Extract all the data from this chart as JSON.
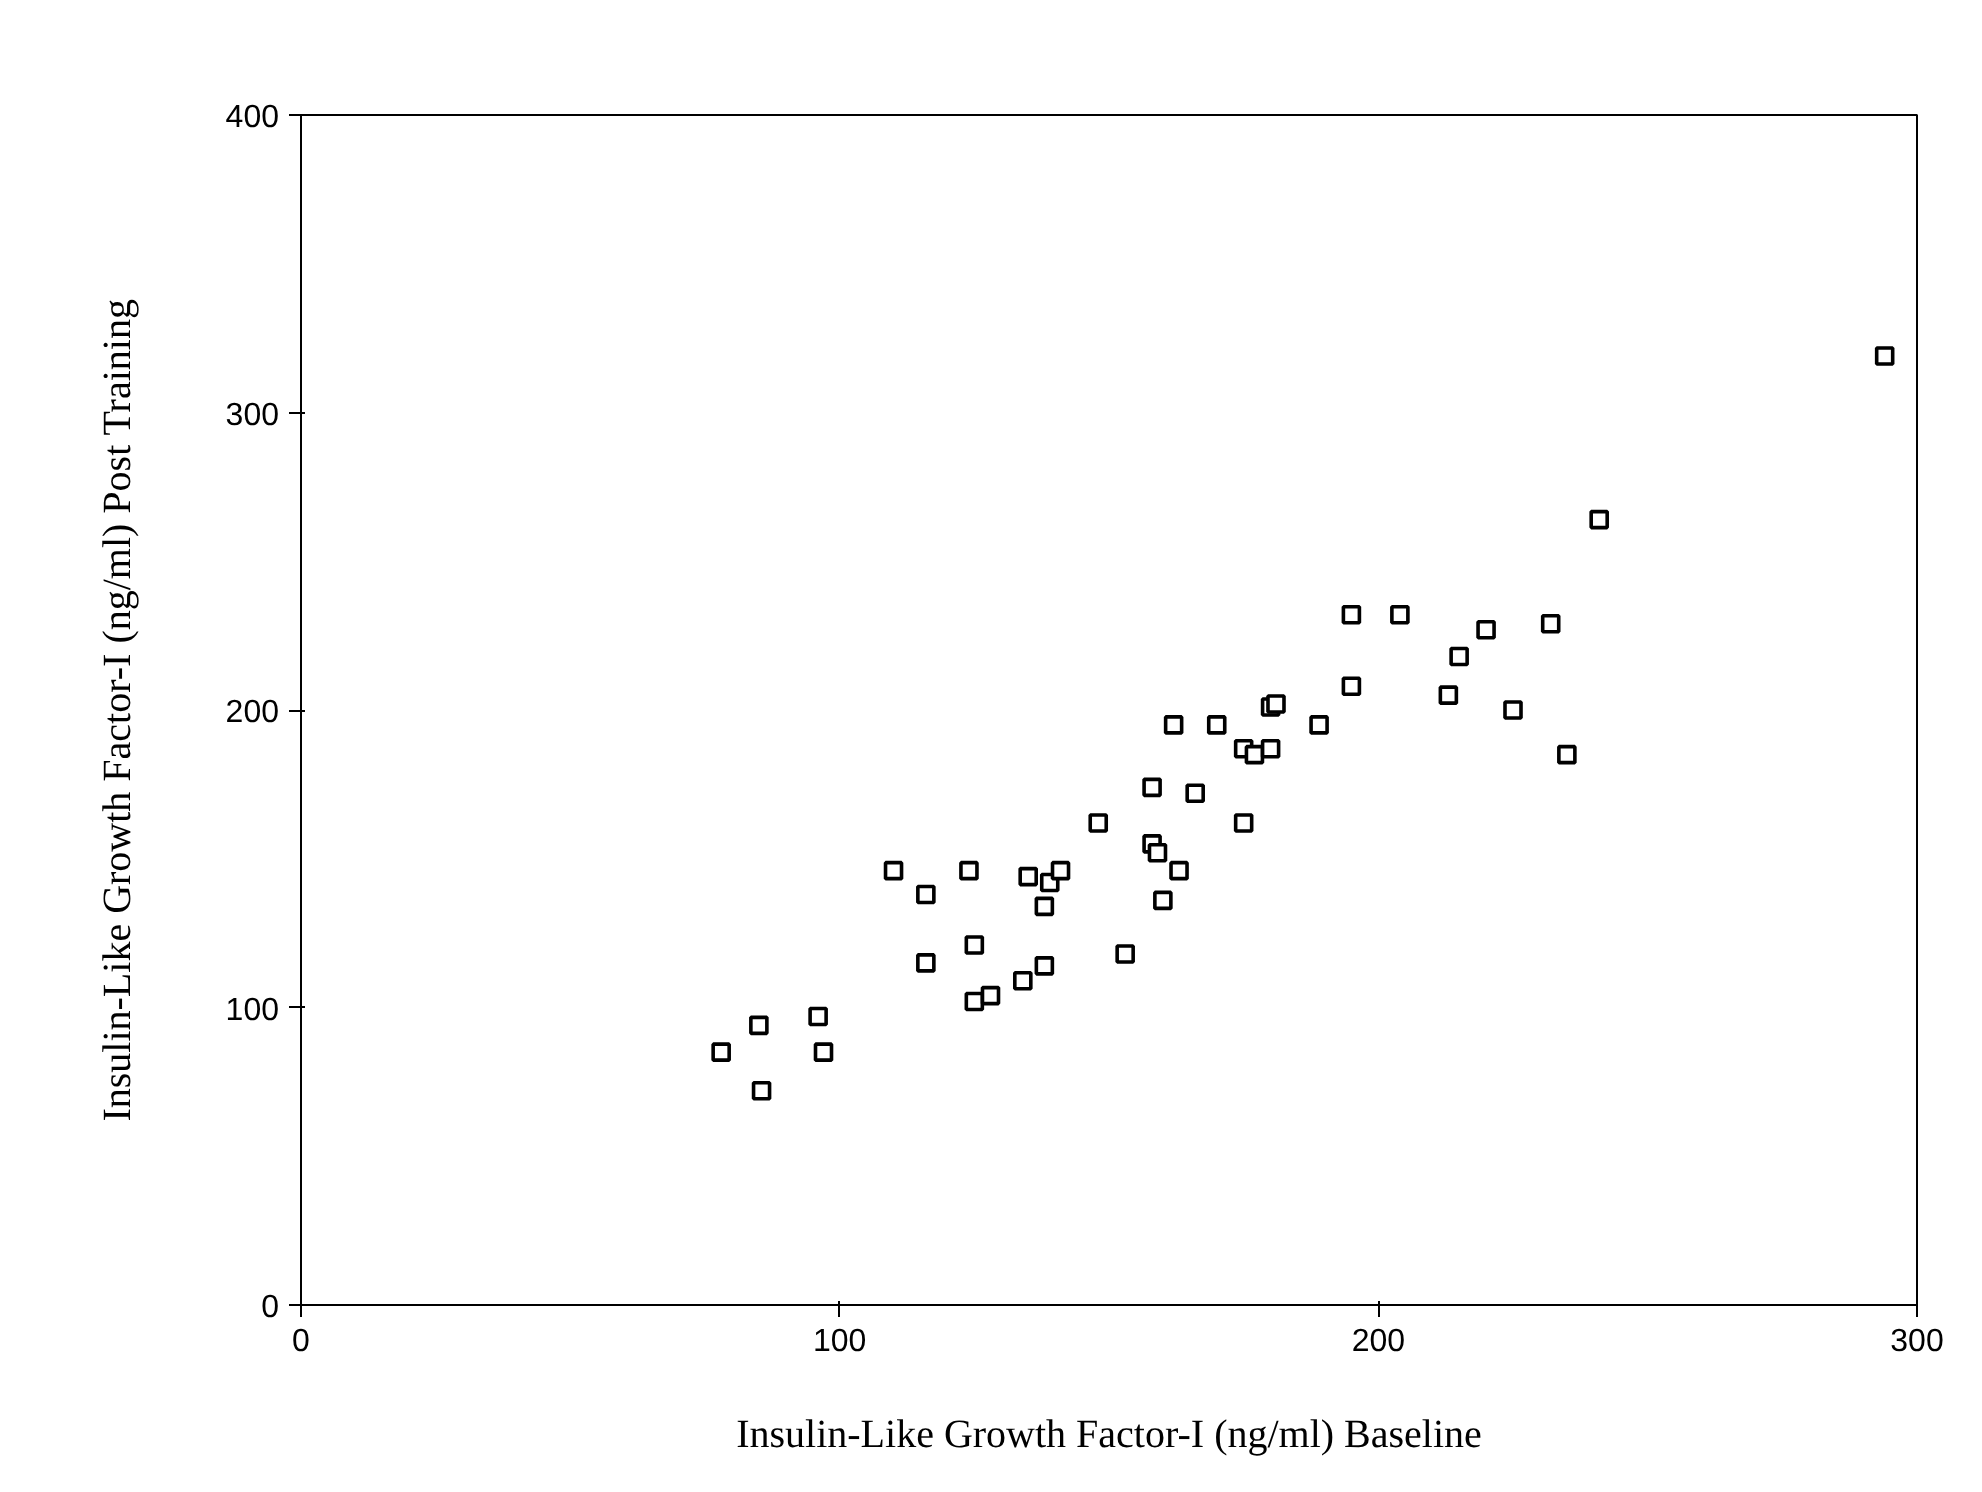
{
  "chart_data": {
    "type": "scatter",
    "xlabel": "Insulin-Like Growth Factor-I (ng/ml) Baseline",
    "ylabel": "Insulin-Like Growth Factor-I (ng/ml) Post Training",
    "xlim": [
      0,
      300
    ],
    "ylim": [
      0,
      400
    ],
    "xticks": [
      0,
      100,
      200,
      300
    ],
    "yticks": [
      0,
      100,
      200,
      300,
      400
    ],
    "marker": "square",
    "grid": false,
    "series": [
      {
        "color": "#000000",
        "x": [
          78,
          85,
          85.5,
          96,
          97,
          110,
          116,
          116,
          124,
          125,
          125,
          128,
          134,
          135,
          138,
          139,
          138,
          141,
          148,
          153,
          158,
          158,
          159,
          160,
          162,
          163,
          166,
          170,
          175,
          175,
          177,
          180,
          181,
          180,
          189,
          195,
          195,
          204,
          213,
          215,
          220,
          225,
          232,
          235,
          241,
          294
        ],
        "values": [
          85,
          94,
          72,
          97,
          85,
          146,
          138,
          115,
          146,
          102,
          121,
          104,
          109,
          144,
          134,
          142,
          114,
          146,
          162,
          118,
          155,
          174,
          152,
          136,
          195,
          146,
          172,
          195,
          162,
          187,
          185,
          201,
          202,
          187,
          195,
          232,
          208,
          232,
          205,
          218,
          227,
          200,
          229,
          185,
          264,
          319
        ]
      }
    ]
  }
}
